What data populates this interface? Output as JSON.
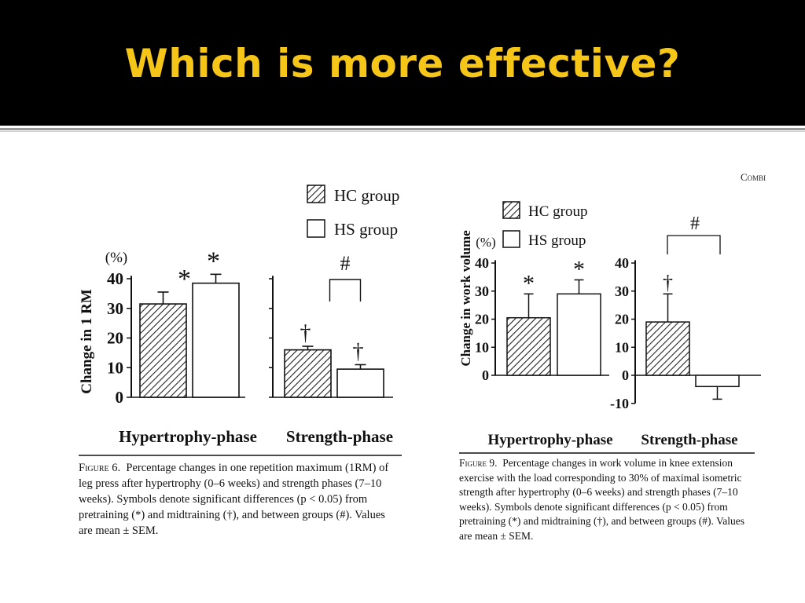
{
  "slide": {
    "title": "Which is more effective?",
    "corner_text": "Combi",
    "colors": {
      "title_bar": "#000000",
      "title_text": "#f5c518",
      "ink": "#111111"
    }
  },
  "figure6": {
    "legend": [
      "HC group",
      "HS group"
    ],
    "caption": {
      "label": "Figure 6.",
      "text": "Percentage changes in one repetition maximum (1RM) of leg press after hypertrophy (0–6 weeks) and strength phases (7–10 weeks). Symbols denote significant differences (p < 0.05) from pretraining (*) and midtraining (†), and between groups (#). Values are mean ± SEM."
    }
  },
  "figure9": {
    "legend": [
      "HC group",
      "HS group"
    ],
    "caption": {
      "label": "Figure 9.",
      "text": "Percentage changes in work volume in knee extension exercise with the load corresponding to 30% of maximal isometric strength after hypertrophy (0–6 weeks) and strength phases (7–10 weeks). Symbols denote significant differences (p < 0.05) from pretraining (*) and midtraining (†), and between groups (#). Values are mean ± SEM."
    }
  },
  "chart_data": [
    {
      "type": "bar",
      "title": "",
      "ylabel": "Change in 1 RM",
      "yunit": "(%)",
      "ylim": [
        0,
        40
      ],
      "yticks": [
        0,
        10,
        20,
        30,
        40
      ],
      "categories": [
        "Hypertrophy-phase",
        "Strength-phase"
      ],
      "series": [
        {
          "name": "HC group",
          "pattern": "hatched",
          "values": [
            31.5,
            16
          ],
          "error": [
            4,
            1.2
          ]
        },
        {
          "name": "HS group",
          "pattern": "open",
          "values": [
            38.5,
            9.5
          ],
          "error": [
            3,
            1.5
          ]
        }
      ],
      "annotations": [
        {
          "category": 0,
          "series": 0,
          "symbol": "*"
        },
        {
          "category": 0,
          "series": 1,
          "symbol": "*"
        },
        {
          "category": 1,
          "series": 0,
          "symbol": "†"
        },
        {
          "category": 1,
          "series": 1,
          "symbol": "†"
        },
        {
          "category": 1,
          "symbol": "#",
          "bracket": [
            0,
            1
          ]
        }
      ],
      "grid": false,
      "legend": "top-right"
    },
    {
      "type": "bar",
      "title": "",
      "ylabel": "Change in work volume",
      "yunit": "(%)",
      "ylim": [
        -10,
        40
      ],
      "yticks_left": [
        0,
        10,
        20,
        30,
        40
      ],
      "yticks_right": [
        -10,
        0,
        10,
        20,
        30,
        40
      ],
      "categories": [
        "Hypertrophy-phase",
        "Strength-phase"
      ],
      "series": [
        {
          "name": "HC group",
          "pattern": "hatched",
          "values": [
            20.5,
            19
          ],
          "error": [
            8.5,
            10
          ]
        },
        {
          "name": "HS group",
          "pattern": "open",
          "values": [
            29,
            -4
          ],
          "error": [
            5,
            4.5
          ]
        }
      ],
      "annotations": [
        {
          "category": 0,
          "series": 0,
          "symbol": "*"
        },
        {
          "category": 0,
          "series": 1,
          "symbol": "*"
        },
        {
          "category": 1,
          "series": 0,
          "symbol": "†"
        },
        {
          "category": 1,
          "symbol": "#",
          "bracket": [
            0,
            1
          ]
        }
      ],
      "grid": false,
      "legend": "top-left"
    }
  ]
}
